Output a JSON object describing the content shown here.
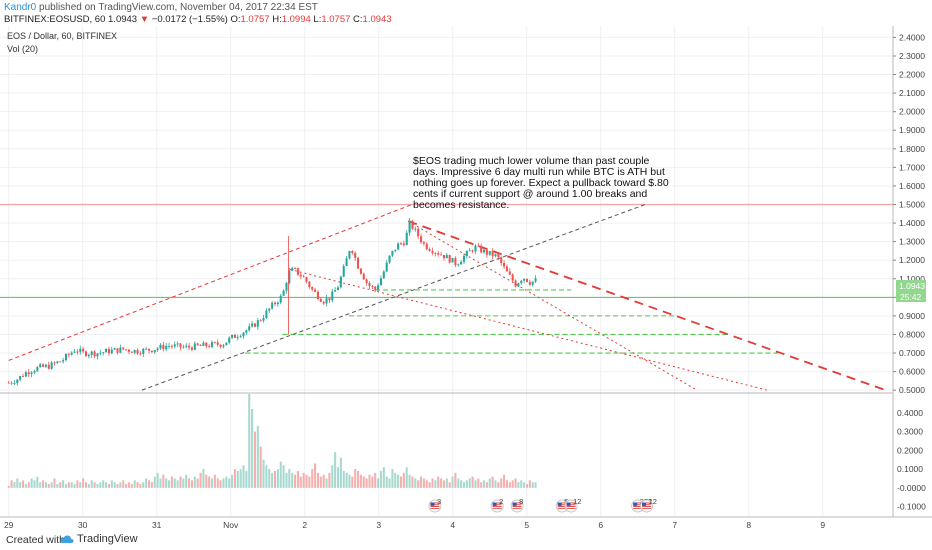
{
  "header": {
    "author": "Kandr0",
    "published_text": "published on TradingView.com, November 04, 2017 22:34 EST",
    "symbol": "BITFINEX:EOSUSD, 60",
    "last": "1.0943",
    "change": "−0.0172 (−1.55%)",
    "o_label": "O:",
    "o_value": "1.0757",
    "h_label": "H:",
    "h_value": "1.0994",
    "l_label": "L:",
    "l_value": "1.0757",
    "c_label": "C:",
    "c_value": "1.0943"
  },
  "legend": {
    "series_title": "EOS / Dollar, 60, BITFINEX",
    "volume_title": "Vol (20)"
  },
  "annotation": {
    "lines": [
      "$EOS trading much lower volume than past couple",
      "days.  Impressive 6 day multi run while BTC is ATH but",
      "nothing goes up forever. Expect a pullback toward $.80",
      "cents if current support @ around 1.00 breaks and",
      "becomes resistance."
    ]
  },
  "price_tags": {
    "last_price": "1.0943",
    "countdown": "25:42"
  },
  "event_badges": [
    {
      "label": "3",
      "x": 5.76
    },
    {
      "label": "2",
      "x": 6.6
    },
    {
      "label": "8",
      "x": 6.87
    },
    {
      "label": "5",
      "x": 7.48
    },
    {
      "label": "12",
      "x": 7.6
    },
    {
      "label": "273",
      "x": 8.5
    },
    {
      "label": "12",
      "x": 8.62
    }
  ],
  "footer": {
    "created_with": "Created with",
    "brand": "TradingView"
  },
  "colors": {
    "up": "#26a69a",
    "down": "#ef5350",
    "vol_up": "#a6d9cf",
    "vol_down": "#f3b0ae",
    "trend_red": "#e53935",
    "trend_dark": "#555555",
    "support_green": "#55c94b",
    "resistance_pink": "#f5a3a3",
    "tag_bg": "#93d68f"
  },
  "chart_data": {
    "type": "candlestick",
    "title": "EOS / Dollar, 60, BITFINEX",
    "x_axis": {
      "ticks": [
        {
          "label": "29",
          "x": 0
        },
        {
          "label": "30",
          "x": 1
        },
        {
          "label": "31",
          "x": 2
        },
        {
          "label": "Nov",
          "x": 3
        },
        {
          "label": "2",
          "x": 4
        },
        {
          "label": "3",
          "x": 5
        },
        {
          "label": "4",
          "x": 6
        },
        {
          "label": "5",
          "x": 7
        },
        {
          "label": "6",
          "x": 8
        },
        {
          "label": "7",
          "x": 9
        },
        {
          "label": "8",
          "x": 10
        },
        {
          "label": "9",
          "x": 11
        }
      ],
      "range": [
        -0.05,
        11.95
      ]
    },
    "price_axis": {
      "ticks": [
        "0.5000",
        "0.6000",
        "0.7000",
        "0.8000",
        "0.9000",
        "1.0000",
        "1.1000",
        "1.2000",
        "1.3000",
        "1.4000",
        "1.5000",
        "1.6000",
        "1.7000",
        "1.8000",
        "1.9000",
        "2.0000",
        "2.1000",
        "2.2000",
        "2.3000",
        "2.4000"
      ],
      "range": [
        0.49,
        2.44
      ]
    },
    "volume_axis": {
      "ticks": [
        "-0.1000",
        "-0.0000",
        "0.1000",
        "0.2000",
        "0.3000",
        "0.4000"
      ],
      "range": [
        -0.15,
        0.5
      ]
    },
    "price_path": [
      [
        0.0,
        0.54
      ],
      [
        0.12,
        0.56
      ],
      [
        0.25,
        0.6
      ],
      [
        0.4,
        0.62
      ],
      [
        0.55,
        0.63
      ],
      [
        0.72,
        0.66
      ],
      [
        0.9,
        0.72
      ],
      [
        1.0,
        0.7
      ],
      [
        1.2,
        0.7
      ],
      [
        1.35,
        0.71
      ],
      [
        1.55,
        0.72
      ],
      [
        1.75,
        0.71
      ],
      [
        1.95,
        0.72
      ],
      [
        2.15,
        0.74
      ],
      [
        2.4,
        0.73
      ],
      [
        2.65,
        0.74
      ],
      [
        2.9,
        0.75
      ],
      [
        3.0,
        0.78
      ],
      [
        3.1,
        0.8
      ],
      [
        3.25,
        0.83
      ],
      [
        3.4,
        0.88
      ],
      [
        3.55,
        0.95
      ],
      [
        3.7,
        1.01
      ],
      [
        3.78,
        1.13
      ],
      [
        3.85,
        1.15
      ],
      [
        4.0,
        1.1
      ],
      [
        4.1,
        1.04
      ],
      [
        4.25,
        0.98
      ],
      [
        4.35,
        1.0
      ],
      [
        4.45,
        1.06
      ],
      [
        4.55,
        1.18
      ],
      [
        4.62,
        1.28
      ],
      [
        4.72,
        1.17
      ],
      [
        4.85,
        1.07
      ],
      [
        4.95,
        1.04
      ],
      [
        5.05,
        1.12
      ],
      [
        5.15,
        1.22
      ],
      [
        5.25,
        1.28
      ],
      [
        5.35,
        1.3
      ],
      [
        5.42,
        1.4
      ],
      [
        5.52,
        1.34
      ],
      [
        5.62,
        1.28
      ],
      [
        5.75,
        1.25
      ],
      [
        5.9,
        1.22
      ],
      [
        6.05,
        1.18
      ],
      [
        6.15,
        1.22
      ],
      [
        6.3,
        1.27
      ],
      [
        6.45,
        1.24
      ],
      [
        6.6,
        1.22
      ],
      [
        6.72,
        1.14
      ],
      [
        6.85,
        1.07
      ],
      [
        6.95,
        1.11
      ],
      [
        7.05,
        1.08
      ],
      [
        7.12,
        1.09
      ]
    ],
    "volume": [
      0.01,
      0.04,
      0.03,
      0.05,
      0.03,
      0.04,
      0.02,
      0.03,
      0.05,
      0.04,
      0.06,
      0.03,
      0.04,
      0.03,
      0.02,
      0.03,
      0.05,
      0.02,
      0.03,
      0.04,
      0.02,
      0.03,
      0.03,
      0.02,
      0.04,
      0.03,
      0.05,
      0.03,
      0.02,
      0.04,
      0.03,
      0.02,
      0.03,
      0.04,
      0.03,
      0.02,
      0.04,
      0.03,
      0.02,
      0.03,
      0.04,
      0.02,
      0.03,
      0.02,
      0.04,
      0.03,
      0.02,
      0.03,
      0.05,
      0.04,
      0.03,
      0.06,
      0.08,
      0.05,
      0.07,
      0.05,
      0.04,
      0.06,
      0.05,
      0.04,
      0.06,
      0.05,
      0.07,
      0.05,
      0.04,
      0.06,
      0.05,
      0.08,
      0.1,
      0.07,
      0.06,
      0.05,
      0.07,
      0.05,
      0.04,
      0.05,
      0.06,
      0.05,
      0.07,
      0.1,
      0.09,
      0.1,
      0.12,
      0.09,
      0.5,
      0.42,
      0.3,
      0.33,
      0.22,
      0.15,
      0.12,
      0.1,
      0.08,
      0.09,
      0.1,
      0.14,
      0.12,
      0.08,
      0.1,
      0.08,
      0.07,
      0.09,
      0.06,
      0.08,
      0.07,
      0.06,
      0.1,
      0.13,
      0.08,
      0.06,
      0.07,
      0.05,
      0.08,
      0.12,
      0.19,
      0.11,
      0.16,
      0.09,
      0.08,
      0.07,
      0.06,
      0.1,
      0.09,
      0.07,
      0.06,
      0.05,
      0.07,
      0.06,
      0.08,
      0.05,
      0.09,
      0.11,
      0.06,
      0.05,
      0.1,
      0.08,
      0.07,
      0.06,
      0.08,
      0.11,
      0.07,
      0.06,
      0.05,
      0.04,
      0.06,
      0.05,
      0.04,
      0.03,
      0.05,
      0.04,
      0.06,
      0.05,
      0.04,
      0.05,
      0.03,
      0.06,
      0.08,
      0.05,
      0.04,
      0.03,
      0.04,
      0.05,
      0.06,
      0.04,
      0.05,
      0.03,
      0.04,
      0.03,
      0.05,
      0.06,
      0.04,
      0.03,
      0.05,
      0.07,
      0.04,
      0.03,
      0.04,
      0.05,
      0.03,
      0.04,
      0.03,
      0.02,
      0.04,
      0.03
    ],
    "horizontal_levels": [
      {
        "price": 1.5,
        "kind": "resistance",
        "color": "#f5a3a3"
      },
      {
        "price": 1.0,
        "kind": "support",
        "color": "#55c94b"
      },
      {
        "price": 1.04,
        "kind": "support-dashed",
        "x_from": 4.95,
        "x_to": 7.6
      },
      {
        "price": 0.9,
        "kind": "support-dashed",
        "x_from": 4.6,
        "x_to": 9.0
      },
      {
        "price": 0.8,
        "kind": "support-dashed",
        "x_from": 3.7,
        "x_to": 9.7
      },
      {
        "price": 0.7,
        "kind": "support-dashed",
        "x_from": 3.2,
        "x_to": 10.4
      }
    ],
    "trend_lines": [
      {
        "from": [
          0.0,
          0.66
        ],
        "to": [
          5.45,
          1.5
        ],
        "color": "#e53935",
        "style": "dashed",
        "extend": true
      },
      {
        "from": [
          1.8,
          0.5
        ],
        "to": [
          8.6,
          1.5
        ],
        "color": "#555555",
        "style": "dashed",
        "extend": false
      },
      {
        "from": [
          5.4,
          1.41
        ],
        "to": [
          11.85,
          0.5
        ],
        "color": "#e53935",
        "style": "dashed-thick",
        "extend": false
      },
      {
        "from": [
          5.4,
          1.41
        ],
        "to": [
          9.3,
          0.5
        ],
        "color": "#e53935",
        "style": "dotted",
        "extend": false
      },
      {
        "from": [
          3.8,
          1.15
        ],
        "to": [
          10.25,
          0.5
        ],
        "color": "#e53935",
        "style": "dotted",
        "extend": false
      }
    ]
  }
}
